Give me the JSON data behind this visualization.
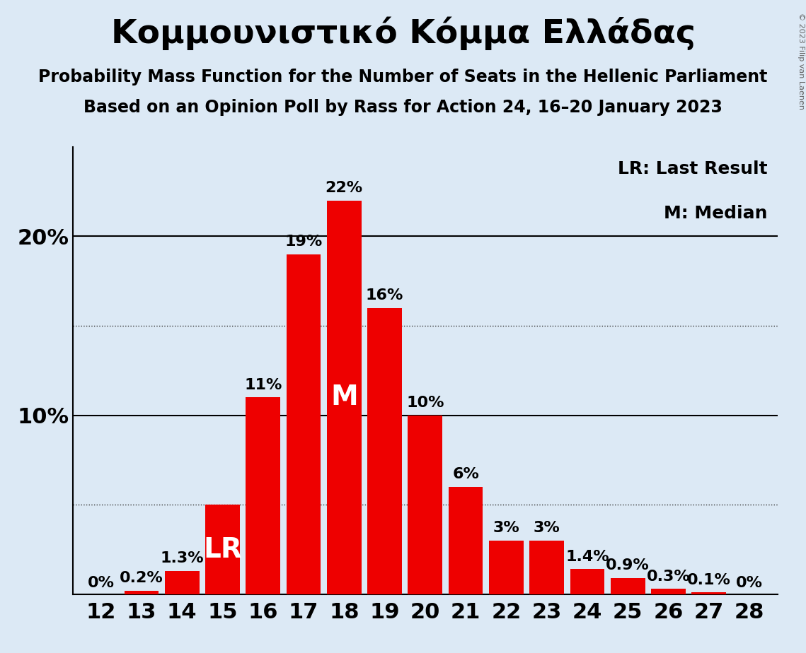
{
  "title": "Κομμουνιστικό Κόμμα Ελλάδας",
  "subtitle1": "Probability Mass Function for the Number of Seats in the Hellenic Parliament",
  "subtitle2": "Based on an Opinion Poll by Rass for Action 24, 16–20 January 2023",
  "copyright": "© 2023 Filip van Laenen",
  "seats": [
    12,
    13,
    14,
    15,
    16,
    17,
    18,
    19,
    20,
    21,
    22,
    23,
    24,
    25,
    26,
    27,
    28
  ],
  "probabilities": [
    0.0,
    0.2,
    1.3,
    5.0,
    11.0,
    19.0,
    22.0,
    16.0,
    10.0,
    6.0,
    3.0,
    3.0,
    1.4,
    0.9,
    0.3,
    0.1,
    0.0
  ],
  "labels": [
    "0%",
    "0.2%",
    "1.3%",
    "LR",
    "11%",
    "19%",
    "22%",
    "16%",
    "10%",
    "6%",
    "3%",
    "3%",
    "1.4%",
    "0.9%",
    "0.3%",
    "0.1%",
    "0%"
  ],
  "bar_color": "#ee0000",
  "background_color": "#dce9f5",
  "text_color": "#000000",
  "median_seat": 18,
  "last_result_seat": 15,
  "legend_lr": "LR: Last Result",
  "legend_m": "M: Median",
  "ylim": [
    0,
    25
  ],
  "solid_yticks": [
    10,
    20
  ],
  "dotted_yticks": [
    5,
    15
  ],
  "title_fontsize": 34,
  "subtitle_fontsize": 17,
  "axis_fontsize": 22,
  "label_fontsize": 16,
  "bar_label_inside_fontsize": 28,
  "legend_fontsize": 18
}
